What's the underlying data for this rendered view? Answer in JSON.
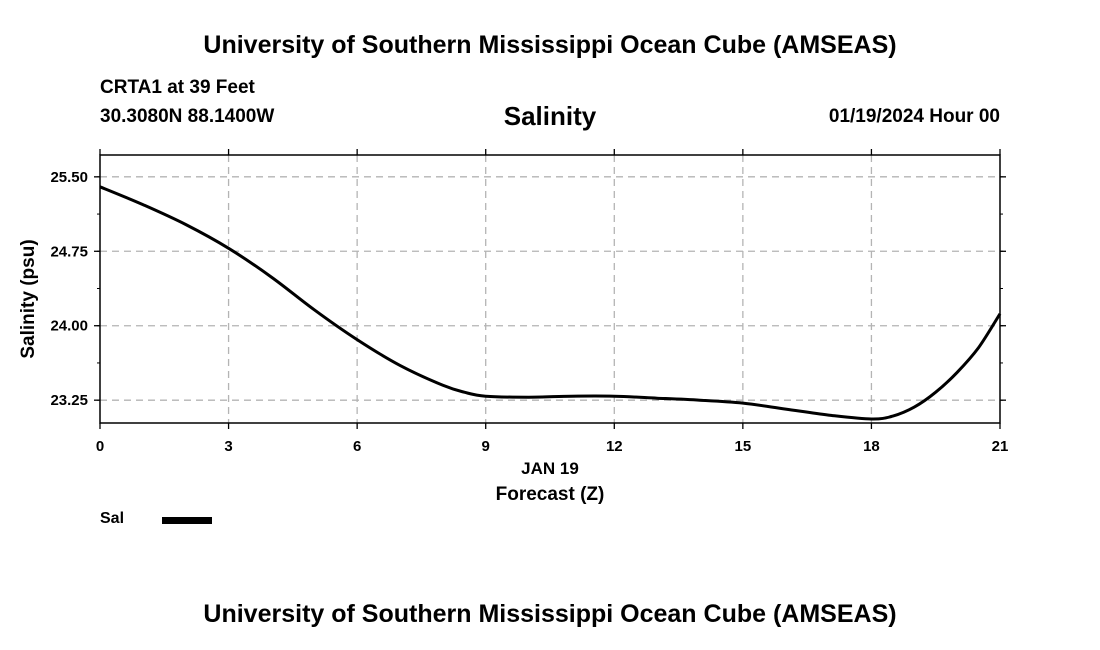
{
  "header": {
    "top_title": "University of Southern Mississippi Ocean Cube (AMSEAS)",
    "station": "CRTA1 at 39 Feet",
    "coords": "30.3080N  88.1400W",
    "chart_title": "Salinity",
    "date": "01/19/2024 Hour 00"
  },
  "footer": {
    "bottom_title": "University of Southern Mississippi Ocean Cube (AMSEAS)"
  },
  "legend": {
    "label": "Sal"
  },
  "colors": {
    "line": "#000000",
    "grid": "#b4b4b4"
  },
  "chart_data": {
    "type": "line",
    "title": "Salinity",
    "xlabel": "Forecast (Z)",
    "xlabel_sub": "JAN 19",
    "ylabel": "Salinity (psu)",
    "xlim": [
      0,
      21
    ],
    "ylim": [
      23.02,
      25.72
    ],
    "xticks": [
      0,
      3,
      6,
      9,
      12,
      15,
      18,
      21
    ],
    "xtick_labels": [
      "0",
      "3",
      "6",
      "9",
      "12",
      "15",
      "18",
      "21"
    ],
    "yticks": [
      23.25,
      24.0,
      24.75,
      25.5
    ],
    "ytick_labels": [
      "23.25",
      "24.00",
      "24.75",
      "25.50"
    ],
    "grid": true,
    "series": [
      {
        "name": "Sal",
        "x": [
          0,
          1,
          2,
          3,
          4,
          5,
          6,
          7,
          8,
          8.5,
          9,
          10,
          11,
          12,
          13,
          14,
          15,
          16,
          17,
          18,
          18.5,
          19,
          19.5,
          20,
          20.5,
          21
        ],
        "values": [
          25.4,
          25.22,
          25.02,
          24.78,
          24.49,
          24.16,
          23.86,
          23.6,
          23.4,
          23.33,
          23.29,
          23.28,
          23.29,
          23.29,
          23.27,
          23.25,
          23.22,
          23.16,
          23.1,
          23.06,
          23.09,
          23.18,
          23.33,
          23.53,
          23.78,
          24.12
        ]
      }
    ]
  }
}
